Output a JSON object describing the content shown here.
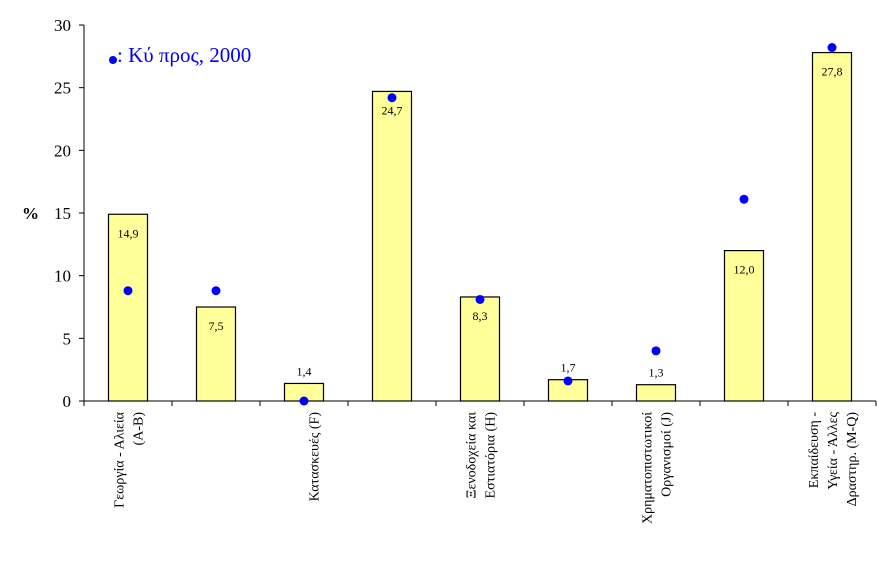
{
  "chart_data": {
    "type": "bar",
    "ylabel": "%",
    "ylim": [
      0,
      30
    ],
    "yticks": [
      "0",
      "5",
      "10",
      "15",
      "20",
      "25",
      "30"
    ],
    "categories": [
      [
        "Γεωργία - Αλιεία",
        "(A-B)"
      ],
      [
        "",
        ""
      ],
      [
        "",
        "Κατασκευές (F)"
      ],
      [
        "",
        ""
      ],
      [
        "Ξενοδοχεία και",
        "Εστιατόρια (H)"
      ],
      [
        "",
        ""
      ],
      [
        "Χρηματοπιστωτικοί",
        "Οργανισμοί (J)"
      ],
      [
        "",
        ""
      ],
      [
        "Εκπαίδευση -",
        "Υγεία - Άλλες",
        "Δραστηρ. (M-Q)"
      ]
    ],
    "series": [
      {
        "values": [
          14.9,
          7.5,
          1.4,
          24.7,
          8.3,
          1.7,
          1.3,
          12.0,
          27.8
        ],
        "labels": [
          "14,9",
          "7,5",
          "1,4",
          "24,7",
          "8,3",
          "1,7",
          "1,3",
          "12,0",
          "27,8"
        ],
        "label_position": [
          "inside",
          "inside",
          "above",
          "inside",
          "inside",
          "above",
          "above",
          "inside",
          "inside"
        ],
        "color": "#ffff99",
        "border": "#000000"
      },
      {
        "name": "Κύπρος, 2000",
        "type": "scatter",
        "values": [
          8.8,
          8.8,
          0.0,
          24.2,
          8.1,
          1.6,
          4.0,
          16.1,
          28.2
        ],
        "color": "#0000ff"
      }
    ],
    "legend": {
      "marker": "•",
      "text": ": Κύ προς, 2000",
      "position": "top-left"
    },
    "grid": false
  }
}
